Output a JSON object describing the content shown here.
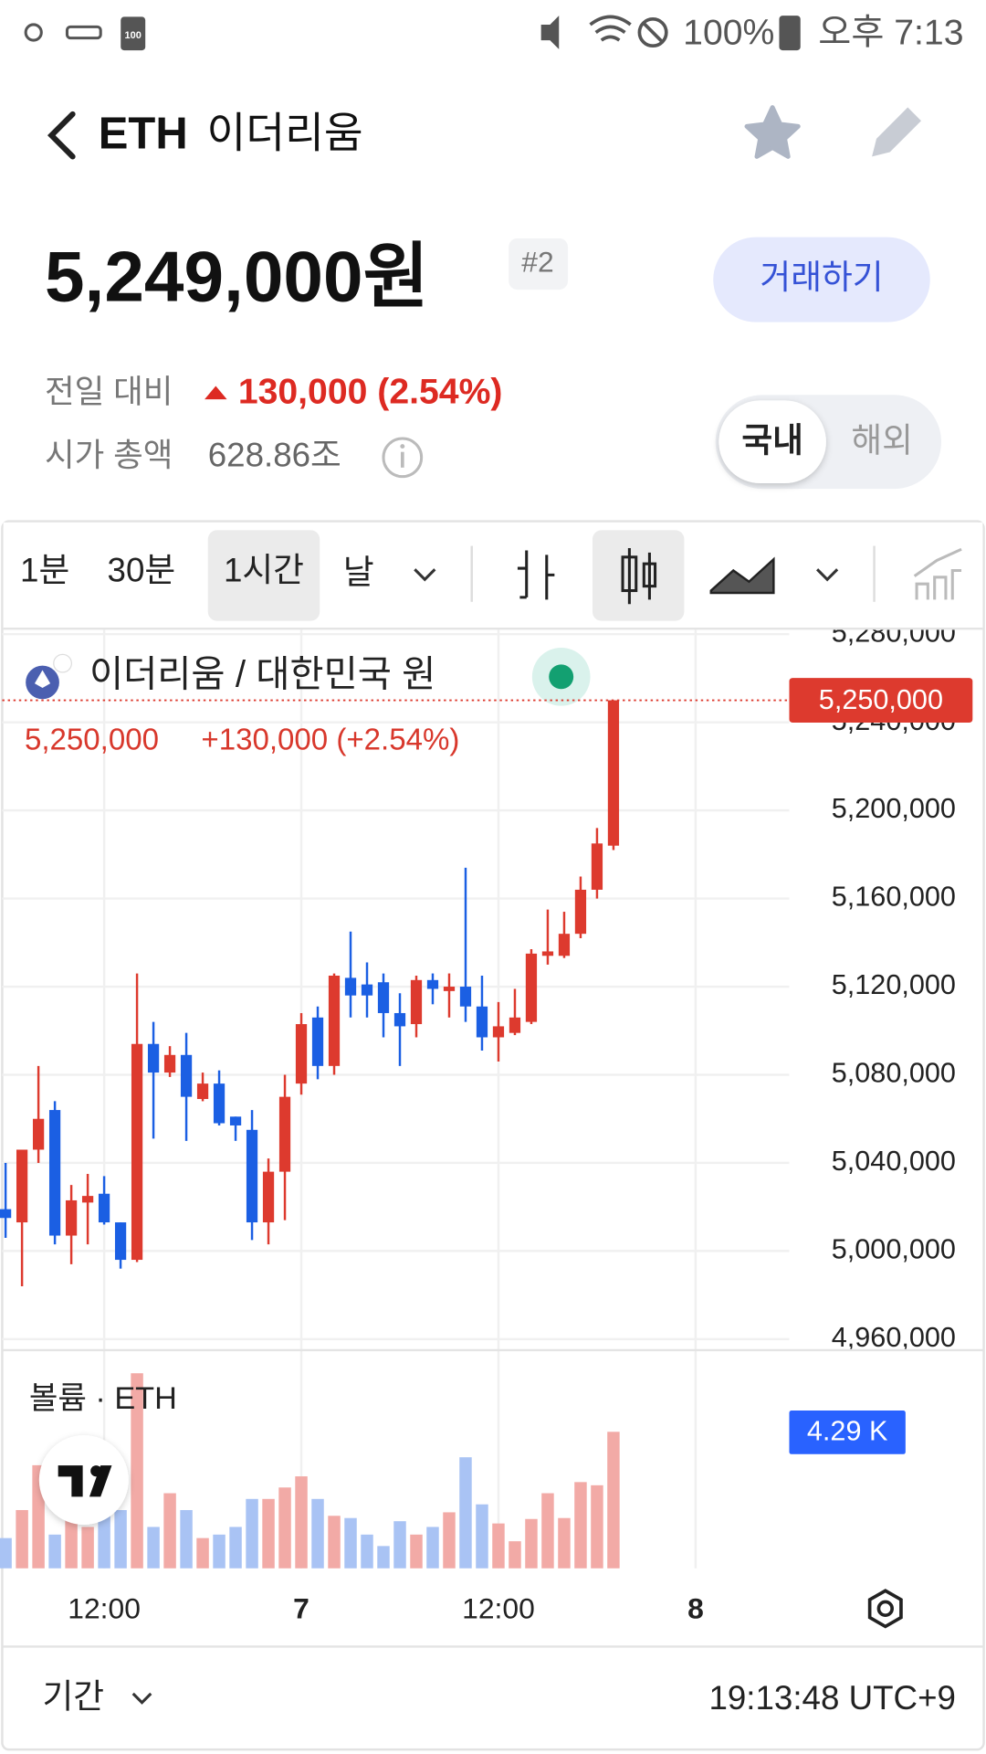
{
  "status_bar": {
    "battery_icon": "100",
    "battery": "100%",
    "time": "오후 7:13"
  },
  "header": {
    "symbol": "ETH",
    "name": "이더리움"
  },
  "price": {
    "value": "5,249,000원",
    "rank": "#2",
    "trade_button": "거래하기"
  },
  "stats": {
    "change_label": "전일 대비",
    "change": "130,000 (2.54%)",
    "market_cap_label": "시가 총액",
    "market_cap": "628.86조"
  },
  "market_toggle": [
    "국내",
    "해외"
  ],
  "toolbar": {
    "intervals": [
      "1분",
      "30분",
      "1시간",
      "날"
    ]
  },
  "chart_data": {
    "type": "candlestick",
    "title": "이더리움 / 대한민국 원",
    "legend_last": "5,250,000",
    "legend_change": "+130,000 (+2.54%)",
    "last_price_label": "5,250,000",
    "up_color": "#dd3a2e",
    "down_color": "#1b5fe3",
    "open": [
      5019000,
      5013000,
      5046000,
      5064000,
      5007000,
      5022000,
      5026000,
      5013000,
      4996000,
      5094000,
      5081000,
      5089000,
      5069000,
      5076000,
      5061000,
      5055000,
      5013000,
      5036000,
      5076000,
      5106000,
      5084000,
      5124000,
      5121000,
      5122000,
      5108000,
      5103000,
      5123000,
      5118000,
      5120000,
      5111000,
      5097000,
      5099000,
      5104000,
      5134000,
      5134000,
      5144000,
      5164000,
      5184000
    ],
    "high": [
      5040000,
      5046000,
      5084000,
      5068000,
      5030000,
      5035000,
      5034000,
      5013000,
      5126000,
      5104000,
      5093000,
      5099000,
      5081000,
      5082000,
      5061000,
      5064000,
      5042000,
      5080000,
      5108000,
      5111000,
      5126000,
      5145000,
      5131000,
      5126000,
      5117000,
      5125000,
      5126000,
      5126000,
      5174000,
      5125000,
      5113000,
      5119000,
      5137000,
      5155000,
      5154000,
      5170000,
      5192000,
      5250000
    ],
    "low": [
      5006000,
      4984000,
      5040000,
      5003000,
      4994000,
      5003000,
      5012000,
      4992000,
      4995000,
      5051000,
      5079000,
      5050000,
      5068000,
      5057000,
      5050000,
      5005000,
      5003000,
      5014000,
      5071000,
      5078000,
      5080000,
      5106000,
      5106000,
      5097000,
      5084000,
      5097000,
      5112000,
      5106000,
      5104000,
      5091000,
      5086000,
      5098000,
      5103000,
      5130000,
      5133000,
      5142000,
      5160000,
      5182000
    ],
    "close": [
      5015000,
      5046000,
      5060000,
      5007000,
      5023000,
      5025000,
      5013000,
      4996000,
      5094000,
      5081000,
      5089000,
      5070000,
      5076000,
      5058000,
      5057000,
      5013000,
      5036000,
      5070000,
      5103000,
      5084000,
      5125000,
      5116000,
      5116000,
      5108000,
      5102000,
      5123000,
      5119000,
      5120000,
      5111000,
      5097000,
      5102000,
      5106000,
      5135000,
      5136000,
      5144000,
      5164000,
      5185000,
      5250000
    ],
    "ylim": [
      4956000,
      5282000
    ],
    "yticks": [
      {
        "value": 4960000,
        "label": "4,960,000"
      },
      {
        "value": 5000000,
        "label": "5,000,000"
      },
      {
        "value": 5040000,
        "label": "5,040,000"
      },
      {
        "value": 5080000,
        "label": "5,080,000"
      },
      {
        "value": 5120000,
        "label": "5,120,000"
      },
      {
        "value": 5160000,
        "label": "5,160,000"
      },
      {
        "value": 5200000,
        "label": "5,200,000"
      },
      {
        "value": 5240000,
        "label": "5,240,000"
      },
      {
        "value": 5280000,
        "label": "5,280,000"
      }
    ],
    "xlim": [
      -0.34,
      47.7
    ],
    "xticks": [
      {
        "value": 6,
        "label": "12:00"
      },
      {
        "value": 18,
        "label": "7"
      },
      {
        "value": 30,
        "label": "12:00"
      },
      {
        "value": 42,
        "label": "8"
      }
    ],
    "grid": true,
    "volume": {
      "title": "볼륨 · ETH",
      "values": [
        950,
        1830,
        3240,
        1060,
        2010,
        1300,
        1830,
        1830,
        6130,
        1300,
        2360,
        1830,
        950,
        1060,
        1300,
        2180,
        2180,
        2540,
        2890,
        2180,
        1650,
        1580,
        1060,
        700,
        1480,
        1060,
        1300,
        1760,
        3490,
        2010,
        1410,
        850,
        1550,
        2360,
        1580,
        2710,
        2610,
        4290
      ],
      "up_color": "#f2aaa6",
      "down_color": "#a9c3f4",
      "ylim": [
        0,
        6750
      ],
      "last_label": "4.29 K"
    }
  },
  "footer": {
    "range_label": "기간",
    "clock": "19:13:48 UTC+9"
  }
}
